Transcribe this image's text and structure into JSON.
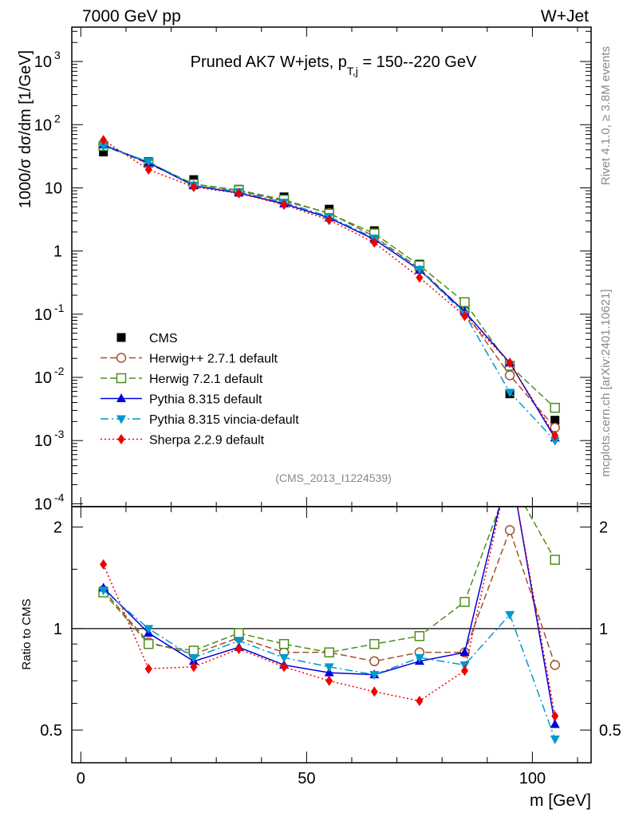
{
  "header": {
    "left": "7000 GeV pp",
    "right": "W+Jet"
  },
  "side_labels": {
    "top": "Rivet 4.1.0, ≥ 3.8M events",
    "bottom": "mcplots.cern.ch [arXiv:2401.10621]"
  },
  "chart_data": [
    {
      "type": "line",
      "panel": "main",
      "title_main": "Pruned AK7 W+jets, p",
      "title_sub": "T,j",
      "title_tail": " = 150--220 GeV",
      "watermark": "(CMS_2013_I1224539)",
      "ylabel": "1000/σ  dσ/dm [1/GeV]",
      "yscale": "log",
      "ylim": [
        9e-05,
        3500
      ],
      "xlim": [
        -2,
        113
      ],
      "yticks": [
        {
          "value": 0.0001,
          "label": "10",
          "sup": "-4"
        },
        {
          "value": 0.001,
          "label": "10",
          "sup": "-3"
        },
        {
          "value": 0.01,
          "label": "10",
          "sup": "-2"
        },
        {
          "value": 0.1,
          "label": "10",
          "sup": "-1"
        },
        {
          "value": 1,
          "label": "1",
          "sup": ""
        },
        {
          "value": 10,
          "label": "10",
          "sup": ""
        },
        {
          "value": 100,
          "label": "10",
          "sup": "2"
        },
        {
          "value": 1000,
          "label": "10",
          "sup": "3"
        }
      ],
      "x": [
        5,
        15,
        25,
        35,
        45,
        55,
        65,
        75,
        85,
        95,
        105
      ],
      "series": [
        {
          "name": "CMS",
          "color": "#000000",
          "marker": "square-filled",
          "dash": "none",
          "values": [
            37,
            26,
            13.5,
            9.5,
            7.2,
            4.6,
            2.1,
            0.62,
            0.13,
            0.0055,
            0.0021
          ]
        },
        {
          "name": "Herwig++ 2.7.1 default",
          "color": "#a0522d",
          "marker": "circle-open",
          "dash": "8,4",
          "values": [
            48,
            24,
            11.5,
            9,
            6.2,
            4.0,
            1.7,
            0.53,
            0.11,
            0.0108,
            0.0016
          ]
        },
        {
          "name": "Herwig 7.2.1 default",
          "color": "#4b8f1a",
          "marker": "square-open",
          "dash": "8,4",
          "values": [
            46,
            25,
            11.5,
            9.2,
            6.5,
            3.9,
            1.9,
            0.59,
            0.155,
            0.0153,
            0.0033
          ]
        },
        {
          "name": "Pythia 8.315 default",
          "color": "#0000dd",
          "marker": "triangle-up",
          "dash": "none",
          "values": [
            48,
            25,
            10.8,
            8.3,
            5.6,
            3.35,
            1.53,
            0.5,
            0.11,
            0.017,
            0.0011
          ]
        },
        {
          "name": "Pythia 8.315 vincia-default",
          "color": "#0099cc",
          "marker": "triangle-down",
          "dash": "10,4,2,4",
          "values": [
            46,
            26,
            11,
            8.7,
            5.9,
            3.5,
            1.6,
            0.51,
            0.1,
            0.0058,
            0.001
          ]
        },
        {
          "name": "Sherpa 2.2.9 default",
          "color": "#ee0000",
          "marker": "diamond",
          "dash": "2,3",
          "values": [
            57,
            19.5,
            10.3,
            8.2,
            5.4,
            3.1,
            1.36,
            0.38,
            0.094,
            0.017,
            0.0012
          ]
        }
      ]
    },
    {
      "type": "line",
      "panel": "ratio",
      "ylabel": "Ratio to CMS",
      "xlabel": "m [GeV]",
      "yscale": "log",
      "ylim": [
        0.4,
        2.3
      ],
      "xlim": [
        -2,
        113
      ],
      "yticks": [
        0.5,
        1,
        2
      ],
      "xticks": [
        0,
        50,
        100
      ],
      "x": [
        5,
        15,
        25,
        35,
        45,
        55,
        65,
        75,
        85,
        95,
        105
      ],
      "series": [
        {
          "name": "Herwig++ 2.7.1 default",
          "values": [
            1.3,
            0.91,
            0.84,
            0.94,
            0.85,
            0.85,
            0.8,
            0.85,
            0.85,
            1.96,
            0.78
          ]
        },
        {
          "name": "Herwig 7.2.1 default",
          "values": [
            1.28,
            0.9,
            0.86,
            0.97,
            0.9,
            0.85,
            0.9,
            0.95,
            1.2,
            2.78,
            1.6
          ]
        },
        {
          "name": "Pythia 8.315 default",
          "values": [
            1.32,
            0.97,
            0.8,
            0.88,
            0.78,
            0.74,
            0.73,
            0.8,
            0.85,
            3.1,
            0.52
          ]
        },
        {
          "name": "Pythia 8.315 vincia-default",
          "values": [
            1.3,
            1.0,
            0.82,
            0.92,
            0.82,
            0.77,
            0.73,
            0.82,
            0.78,
            1.1,
            0.47
          ]
        },
        {
          "name": "Sherpa 2.2.9 default",
          "values": [
            1.55,
            0.76,
            0.77,
            0.87,
            0.77,
            0.7,
            0.65,
            0.61,
            0.75,
            3.1,
            0.55
          ]
        }
      ]
    }
  ]
}
